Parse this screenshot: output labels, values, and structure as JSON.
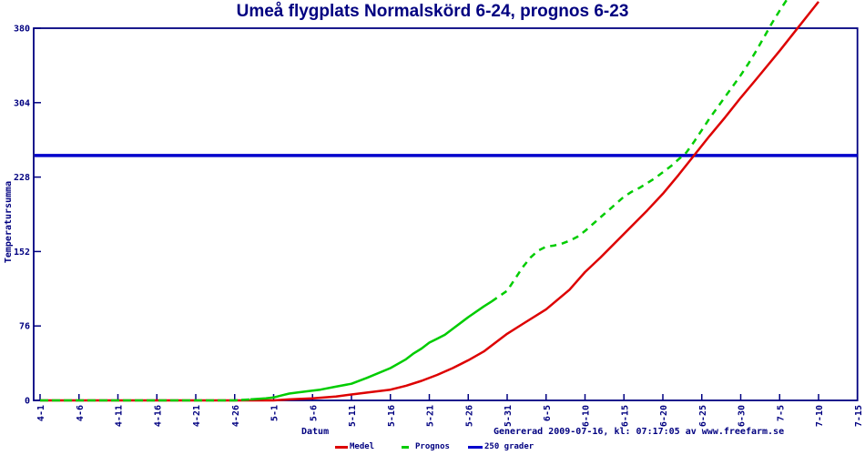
{
  "title": "Umeå flygplats Normalskörd 6-24, prognos 6-23",
  "footer": {
    "generated": "Genererad 2009-07-16, kl: 07:17:05 av www.freefarm.se"
  },
  "colors": {
    "navy": "#000080",
    "red": "#dd0000",
    "green": "#00cc00",
    "blue": "#0000cc",
    "background": "#ffffff"
  },
  "chart_data": {
    "type": "line",
    "title": "Umeå flygplats Normalskörd 6-24, prognos 6-23",
    "xlabel": "Datum",
    "ylabel": "Temperatursumma",
    "ylim": [
      0,
      380
    ],
    "y_ticks": [
      0,
      76,
      152,
      228,
      304,
      380
    ],
    "x_ticks": [
      "4-1",
      "4-6",
      "4-11",
      "4-16",
      "4-21",
      "4-26",
      "5-1",
      "5-6",
      "5-11",
      "5-16",
      "5-21",
      "5-26",
      "5-31",
      "6-5",
      "6-10",
      "6-15",
      "6-20",
      "6-25",
      "6-30",
      "7-5",
      "7-10",
      "7-15"
    ],
    "grid": false,
    "legend_position": "bottom",
    "threshold": {
      "label": "250 grader",
      "value": 250,
      "color": "#0000cc"
    },
    "legend": [
      {
        "label": "Medel",
        "color": "#dd0000",
        "style": "solid"
      },
      {
        "label": "Prognos",
        "color": "#00cc00",
        "style": "dashed"
      },
      {
        "label": "250 grader",
        "color": "#0000cc",
        "style": "solid"
      }
    ],
    "series": [
      {
        "name": "Medel",
        "color": "#dd0000",
        "style": "solid",
        "points": [
          [
            "4-1",
            0
          ],
          [
            "4-11",
            0
          ],
          [
            "4-21",
            0
          ],
          [
            "4-26",
            0
          ],
          [
            "5-1",
            0
          ],
          [
            "5-3",
            1
          ],
          [
            "5-6",
            2
          ],
          [
            "5-9",
            4
          ],
          [
            "5-11",
            6
          ],
          [
            "5-13",
            8
          ],
          [
            "5-16",
            11
          ],
          [
            "5-18",
            15
          ],
          [
            "5-20",
            20
          ],
          [
            "5-22",
            26
          ],
          [
            "5-24",
            33
          ],
          [
            "5-26",
            41
          ],
          [
            "5-28",
            50
          ],
          [
            "5-31",
            68
          ],
          [
            "6-2",
            78
          ],
          [
            "6-5",
            93
          ],
          [
            "6-8",
            113
          ],
          [
            "6-10",
            131
          ],
          [
            "6-12",
            146
          ],
          [
            "6-15",
            170
          ],
          [
            "6-18",
            194
          ],
          [
            "6-20",
            211
          ],
          [
            "6-22",
            230
          ],
          [
            "6-24",
            250
          ],
          [
            "6-26",
            270
          ],
          [
            "6-28",
            289
          ],
          [
            "6-30",
            309
          ],
          [
            "7-2",
            328
          ],
          [
            "7-5",
            357
          ],
          [
            "7-7",
            377
          ],
          [
            "7-10",
            407
          ]
        ]
      },
      {
        "name": "Prognos",
        "color": "#00cc00",
        "style": "solid-then-dashed",
        "dash_from": "5-29",
        "points": [
          [
            "4-1",
            0
          ],
          [
            "4-11",
            0
          ],
          [
            "4-21",
            0
          ],
          [
            "4-26",
            0
          ],
          [
            "4-28",
            1
          ],
          [
            "4-30",
            2
          ],
          [
            "5-1",
            3
          ],
          [
            "5-2",
            5
          ],
          [
            "5-3",
            7
          ],
          [
            "5-4",
            8
          ],
          [
            "5-6",
            10
          ],
          [
            "5-7",
            11
          ],
          [
            "5-9",
            14
          ],
          [
            "5-11",
            17
          ],
          [
            "5-13",
            23
          ],
          [
            "5-16",
            33
          ],
          [
            "5-18",
            42
          ],
          [
            "5-19",
            48
          ],
          [
            "5-20",
            53
          ],
          [
            "5-21",
            59
          ],
          [
            "5-22",
            63
          ],
          [
            "5-23",
            67
          ],
          [
            "5-24",
            73
          ],
          [
            "5-26",
            85
          ],
          [
            "5-28",
            96
          ],
          [
            "5-29",
            101
          ],
          [
            "5-31",
            112
          ],
          [
            "6-1",
            124
          ],
          [
            "6-2",
            136
          ],
          [
            "6-3",
            146
          ],
          [
            "6-4",
            153
          ],
          [
            "6-5",
            157
          ],
          [
            "6-6",
            158
          ],
          [
            "6-7",
            160
          ],
          [
            "6-8",
            163
          ],
          [
            "6-9",
            167
          ],
          [
            "6-10",
            173
          ],
          [
            "6-12",
            187
          ],
          [
            "6-14",
            201
          ],
          [
            "6-15",
            208
          ],
          [
            "6-16",
            213
          ],
          [
            "6-17",
            217
          ],
          [
            "6-18",
            222
          ],
          [
            "6-19",
            227
          ],
          [
            "6-20",
            233
          ],
          [
            "6-21",
            239
          ],
          [
            "6-22",
            246
          ],
          [
            "6-23",
            253
          ],
          [
            "6-24",
            264
          ],
          [
            "6-25",
            276
          ],
          [
            "6-26",
            288
          ],
          [
            "6-27",
            299
          ],
          [
            "6-28",
            310
          ],
          [
            "6-29",
            321
          ],
          [
            "6-30",
            332
          ],
          [
            "7-1",
            344
          ],
          [
            "7-2",
            357
          ],
          [
            "7-3",
            371
          ],
          [
            "7-4",
            385
          ],
          [
            "7-5",
            398
          ],
          [
            "7-6",
            410
          ]
        ]
      }
    ]
  }
}
